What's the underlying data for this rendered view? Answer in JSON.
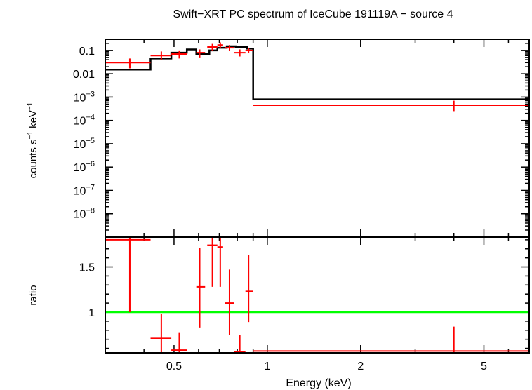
{
  "chart_data": {
    "type": "line",
    "title": "Swift−XRT PC spectrum of IceCube 191119A − source 4",
    "xlabel": "Energy (keV)",
    "x_scale": "log",
    "xlim": [
      0.3,
      7.0
    ],
    "x_ticks": [
      {
        "value": 0.5,
        "label": "0.5"
      },
      {
        "value": 1,
        "label": "1"
      },
      {
        "value": 2,
        "label": "2"
      },
      {
        "value": 5,
        "label": "5"
      }
    ],
    "colors": {
      "model": "#000000",
      "data": "#ff0000",
      "unity": "#00ff00",
      "frame": "#000000"
    },
    "panels": [
      {
        "name": "spectrum",
        "ylabel": {
          "base": "counts s",
          "exp1": "−1",
          "mid": " keV",
          "exp2": "−1"
        },
        "y_scale": "log",
        "ylim": [
          1e-09,
          0.3
        ],
        "y_ticks": [
          {
            "value": 0.1,
            "label": "0.1"
          },
          {
            "value": 0.01,
            "label": "0.01"
          },
          {
            "value": 0.001,
            "mant": "10",
            "exp": "−3"
          },
          {
            "value": 0.0001,
            "mant": "10",
            "exp": "−4"
          },
          {
            "value": 1e-05,
            "mant": "10",
            "exp": "−5"
          },
          {
            "value": 1e-06,
            "mant": "10",
            "exp": "−6"
          },
          {
            "value": 1e-07,
            "mant": "10",
            "exp": "−7"
          },
          {
            "value": 1e-08,
            "mant": "10",
            "exp": "−8"
          }
        ],
        "model": {
          "name": "model",
          "edges": [
            0.3,
            0.42,
            0.49,
            0.55,
            0.59,
            0.65,
            0.69,
            0.74,
            0.79,
            0.86,
            0.9,
            7.0
          ],
          "values": [
            0.015,
            0.045,
            0.08,
            0.11,
            0.07,
            0.1,
            0.13,
            0.15,
            0.14,
            0.12,
            0.0008
          ]
        },
        "data": {
          "name": "data",
          "points": [
            {
              "x": 0.36,
              "xlo": 0.3,
              "xhi": 0.42,
              "y": 0.03,
              "ylo": 0.017,
              "yhi": 0.045
            },
            {
              "x": 0.455,
              "xlo": 0.42,
              "xhi": 0.49,
              "y": 0.06,
              "ylo": 0.038,
              "yhi": 0.09
            },
            {
              "x": 0.52,
              "xlo": 0.49,
              "xhi": 0.55,
              "y": 0.07,
              "ylo": 0.045,
              "yhi": 0.1
            },
            {
              "x": 0.605,
              "xlo": 0.59,
              "xhi": 0.63,
              "y": 0.08,
              "ylo": 0.05,
              "yhi": 0.11
            },
            {
              "x": 0.665,
              "xlo": 0.64,
              "xhi": 0.69,
              "y": 0.14,
              "ylo": 0.1,
              "yhi": 0.19
            },
            {
              "x": 0.705,
              "xlo": 0.69,
              "xhi": 0.72,
              "y": 0.17,
              "ylo": 0.13,
              "yhi": 0.22
            },
            {
              "x": 0.755,
              "xlo": 0.73,
              "xhi": 0.78,
              "y": 0.13,
              "ylo": 0.095,
              "yhi": 0.17
            },
            {
              "x": 0.815,
              "xlo": 0.78,
              "xhi": 0.85,
              "y": 0.08,
              "ylo": 0.055,
              "yhi": 0.11
            },
            {
              "x": 0.87,
              "xlo": 0.85,
              "xhi": 0.9,
              "y": 0.1,
              "ylo": 0.075,
              "yhi": 0.13
            },
            {
              "x": 4.0,
              "xlo": 0.9,
              "xhi": 7.0,
              "y": 0.00045,
              "ylo": 0.00025,
              "yhi": 0.0007
            }
          ]
        }
      },
      {
        "name": "ratio",
        "ylabel": "ratio",
        "y_scale": "linear",
        "ylim": [
          0.55,
          1.83
        ],
        "y_ticks": [
          {
            "value": 1,
            "label": "1"
          },
          {
            "value": 1.5,
            "label": "1.5"
          }
        ],
        "reference": {
          "name": "unity",
          "y": 1
        },
        "data": {
          "name": "ratio",
          "points": [
            {
              "x": 0.36,
              "xlo": 0.3,
              "xhi": 0.42,
              "y": 1.8,
              "ylo": 1.0,
              "yhi": 1.83
            },
            {
              "x": 0.455,
              "xlo": 0.42,
              "xhi": 0.49,
              "y": 0.71,
              "ylo": 0.55,
              "yhi": 0.98
            },
            {
              "x": 0.52,
              "xlo": 0.49,
              "xhi": 0.55,
              "y": 0.58,
              "ylo": 0.55,
              "yhi": 0.77
            },
            {
              "x": 0.605,
              "xlo": 0.59,
              "xhi": 0.63,
              "y": 1.28,
              "ylo": 0.83,
              "yhi": 1.71
            },
            {
              "x": 0.665,
              "xlo": 0.64,
              "xhi": 0.69,
              "y": 1.74,
              "ylo": 1.28,
              "yhi": 1.83
            },
            {
              "x": 0.705,
              "xlo": 0.69,
              "xhi": 0.72,
              "y": 1.72,
              "ylo": 1.28,
              "yhi": 1.83
            },
            {
              "x": 0.755,
              "xlo": 0.73,
              "xhi": 0.78,
              "y": 1.1,
              "ylo": 0.75,
              "yhi": 1.47
            },
            {
              "x": 0.815,
              "xlo": 0.78,
              "xhi": 0.85,
              "y": 0.56,
              "ylo": 0.55,
              "yhi": 0.75
            },
            {
              "x": 0.87,
              "xlo": 0.85,
              "xhi": 0.9,
              "y": 1.23,
              "ylo": 0.89,
              "yhi": 1.63
            },
            {
              "x": 4.0,
              "xlo": 0.9,
              "xhi": 7.0,
              "y": 0.57,
              "ylo": 0.55,
              "yhi": 0.84
            }
          ]
        }
      }
    ]
  }
}
